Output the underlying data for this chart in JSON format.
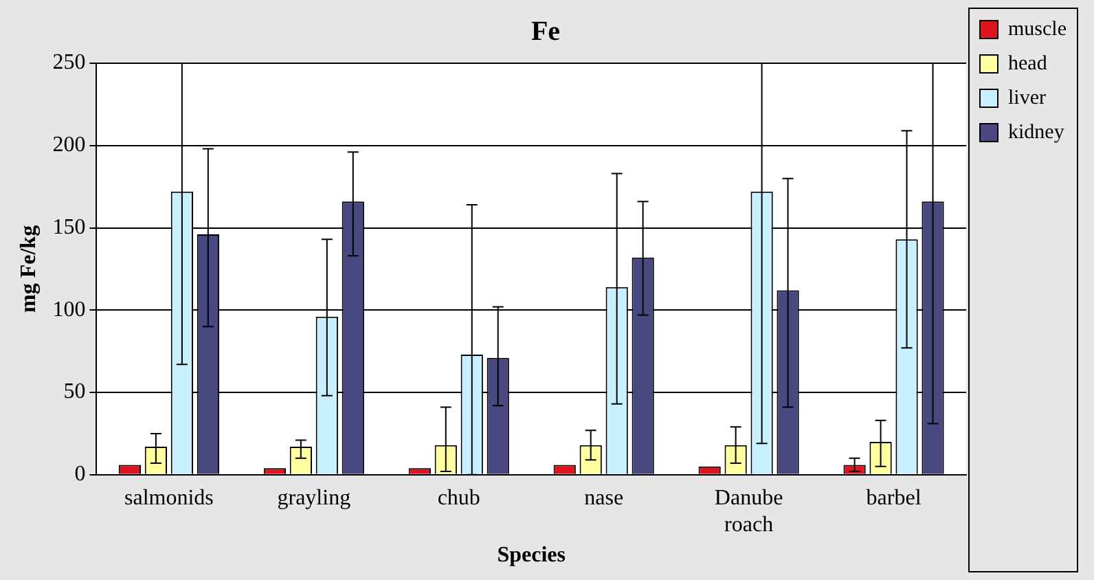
{
  "chart_data": {
    "type": "bar",
    "title": "Fe",
    "xlabel": "Species",
    "ylabel": "mg Fe/kg",
    "categories": [
      "salmonids",
      "grayling",
      "chub",
      "nase",
      "Danube roach",
      "barbel"
    ],
    "series": [
      {
        "name": "muscle",
        "color": "#e0141e",
        "values": [
          6,
          4,
          4,
          6,
          5,
          6
        ],
        "errors": [
          null,
          null,
          null,
          null,
          null,
          [
            2,
            10
          ]
        ]
      },
      {
        "name": "head",
        "color": "#ffffa0",
        "values": [
          17,
          17,
          18,
          18,
          18,
          20
        ],
        "errors": [
          [
            7,
            25
          ],
          [
            10,
            21
          ],
          [
            2,
            41
          ],
          [
            9,
            27
          ],
          [
            7,
            29
          ],
          [
            5,
            33
          ]
        ]
      },
      {
        "name": "liver",
        "color": "#c8f0ff",
        "values": [
          172,
          96,
          73,
          114,
          172,
          143
        ],
        "errors": [
          [
            67,
            250
          ],
          [
            48,
            143
          ],
          [
            0,
            164
          ],
          [
            43,
            183
          ],
          [
            19,
            250
          ],
          [
            77,
            209
          ]
        ]
      },
      {
        "name": "kidney",
        "color": "#4a4880",
        "values": [
          146,
          166,
          71,
          132,
          112,
          166
        ],
        "errors": [
          [
            90,
            198
          ],
          [
            133,
            196
          ],
          [
            42,
            102
          ],
          [
            97,
            166
          ],
          [
            41,
            180
          ],
          [
            31,
            250
          ]
        ]
      }
    ],
    "ylim": [
      0,
      250
    ],
    "yticks": [
      0,
      50,
      100,
      150,
      200,
      250
    ],
    "grid": "y",
    "legend": "right"
  }
}
